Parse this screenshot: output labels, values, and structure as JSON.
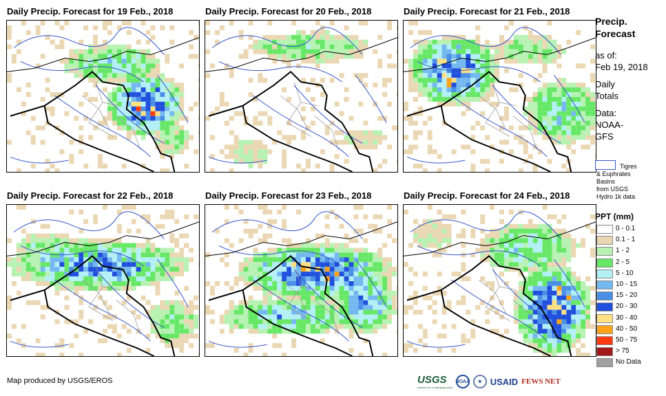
{
  "panels": [
    {
      "title": "Daily Precip. Forecast for 19 Feb., 2018",
      "pattern": "east"
    },
    {
      "title": "Daily Precip. Forecast for 20 Feb., 2018",
      "pattern": "light"
    },
    {
      "title": "Daily Precip. Forecast for 21 Feb., 2018",
      "pattern": "northwest"
    },
    {
      "title": "Daily Precip. Forecast for 22 Feb., 2018",
      "pattern": "band"
    },
    {
      "title": "Daily Precip. Forecast for 23 Feb., 2018",
      "pattern": "central"
    },
    {
      "title": "Daily Precip. Forecast for 24 Feb., 2018",
      "pattern": "southeast"
    }
  ],
  "sidebar": {
    "title_line1": "Precip.",
    "title_line2": "Forecast",
    "asof_label": "as of:",
    "asof_date": "Feb 19, 2018",
    "daily1": "Daily",
    "daily2": "Totals",
    "data_label": "Data:",
    "data_src1": "NOAA-",
    "data_src2": "GFS"
  },
  "basin_key": {
    "line1": "Tigres",
    "line2": "& Euphrates",
    "line3": "Basins",
    "line4": "from USGS",
    "line5": "Hydro 1k data"
  },
  "legend": {
    "title": "PPT (mm)",
    "items": [
      {
        "label": "0 - 0.1",
        "color": "#ffffff"
      },
      {
        "label": "0.1 - 1",
        "color": "#ead7b3"
      },
      {
        "label": "1 - 2",
        "color": "#b7f2b3"
      },
      {
        "label": "2 - 5",
        "color": "#66e866"
      },
      {
        "label": "5 - 10",
        "color": "#b3f0f5"
      },
      {
        "label": "10 - 15",
        "color": "#73b8f0"
      },
      {
        "label": "15 - 20",
        "color": "#4a8fe6"
      },
      {
        "label": "20 - 30",
        "color": "#1f4fdc"
      },
      {
        "label": "30 - 40",
        "color": "#ffe083"
      },
      {
        "label": "40 - 50",
        "color": "#ffa31a"
      },
      {
        "label": "50 - 75",
        "color": "#ff3b0f"
      },
      {
        "label": "> 75",
        "color": "#a31919"
      },
      {
        "label": "No Data",
        "color": "#a0a0a0"
      }
    ]
  },
  "footer": {
    "credit": "Map produced by USGS/EROS",
    "logo_usgs": "USGS",
    "logo_usgs_sub": "science for a changing world",
    "logo_noaa": "NOAA",
    "logo_usaid": "USAID",
    "logo_fews": "FEWS NET"
  }
}
